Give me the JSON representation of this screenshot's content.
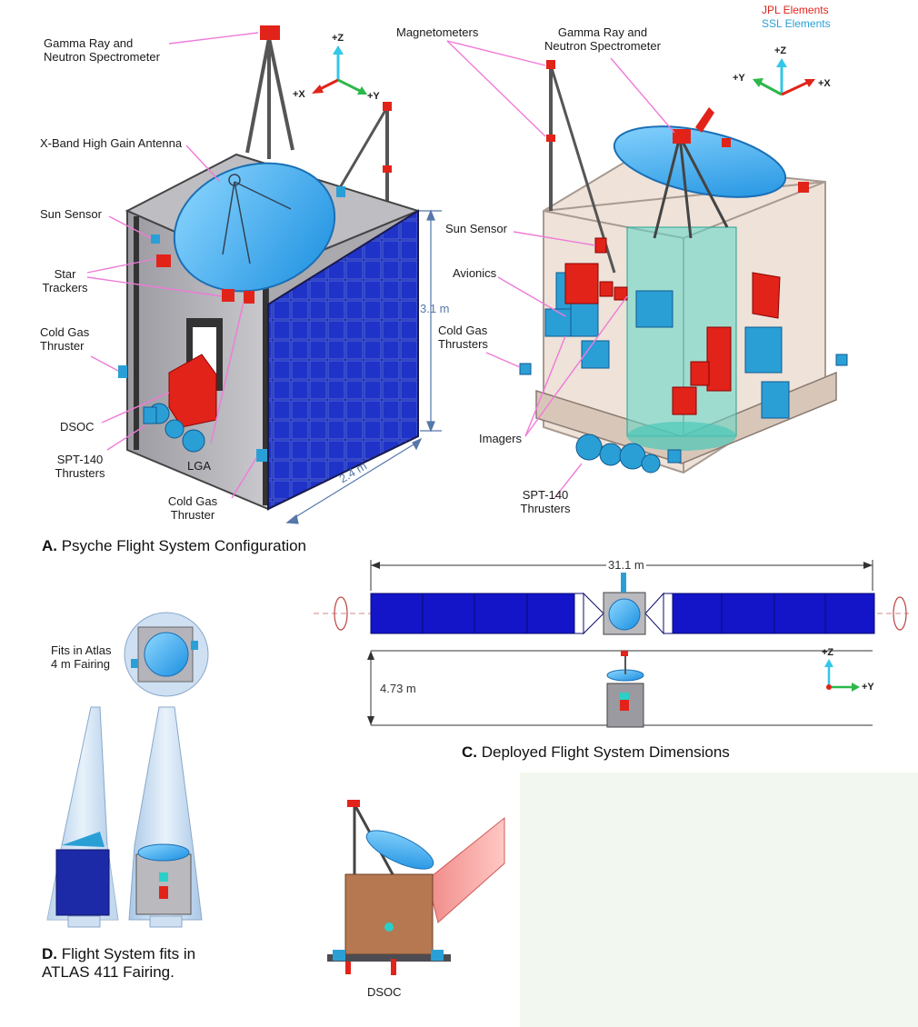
{
  "legend": {
    "jpl": "JPL Elements",
    "ssl": "SSL Elements"
  },
  "panelA": {
    "caption_letter": "A.",
    "caption_text": " Psyche Flight System Configuration",
    "labels": {
      "grns_left": "Gamma Ray and\nNeutron Spectrometer",
      "hga": "X-Band High Gain Antenna",
      "sun_sensor_left": "Sun Sensor",
      "star_trackers": "Star\nTrackers",
      "cold_gas_left": "Cold Gas\nThruster",
      "dsoc_left": "DSOC",
      "spt_left": "SPT-140\nThrusters",
      "lga": "LGA",
      "cold_gas_bottom": "Cold Gas\nThruster",
      "magnetometers": "Magnetometers",
      "grns_right": "Gamma Ray and\nNeutron Spectrometer",
      "sun_sensor_right": "Sun Sensor",
      "avionics": "Avionics",
      "cold_gas_right": "Cold Gas\nThrusters",
      "imagers": "Imagers",
      "spt_right": "SPT-140\nThrusters"
    },
    "dims": {
      "height": "3.1 m",
      "width": "2.4 m"
    },
    "axes_left": {
      "z": "+Z",
      "x": "+X",
      "y": "+Y"
    },
    "axes_right": {
      "z": "+Z",
      "y": "+Y",
      "x": "+X"
    }
  },
  "panelC": {
    "caption_letter": "C.",
    "caption_text": " Deployed Flight System Dimensions",
    "span": "31.1 m",
    "height": "4.73 m",
    "axes": {
      "z": "+Z",
      "y": "+Y"
    }
  },
  "panelD": {
    "caption_letter": "D.",
    "caption_text": " Flight System fits in\n     ATLAS 411 Fairing.",
    "fits_label": "Fits in Atlas\n4 m Fairing"
  },
  "panelE": {
    "dsoc": "DSOC"
  },
  "colors": {
    "jpl_red": "#e2231a",
    "ssl_blue": "#2a9fd6",
    "panel_blue": "#1414c8",
    "pink_leader": "#f07ad8"
  }
}
